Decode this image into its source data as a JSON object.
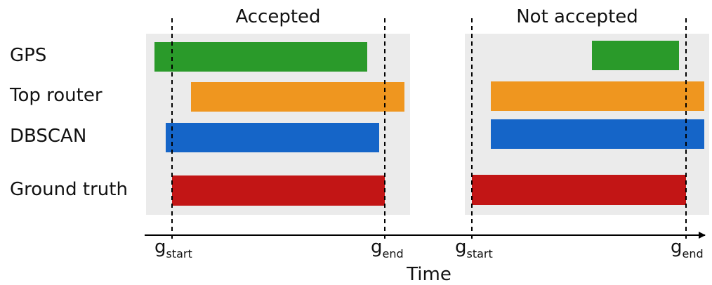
{
  "rows": [
    {
      "id": "gps",
      "label": "GPS",
      "color": "#2a9a2a"
    },
    {
      "id": "top-router",
      "label": "Top router",
      "color": "#ef961f"
    },
    {
      "id": "dbscan",
      "label": "DBSCAN",
      "color": "#1565c8"
    },
    {
      "id": "ground-truth",
      "label": "Ground truth",
      "color": "#c21515"
    }
  ],
  "panels": [
    {
      "id": "accepted",
      "title": "Accepted"
    },
    {
      "id": "not-accepted",
      "title": "Not accepted"
    }
  ],
  "axis": {
    "title": "Time"
  },
  "gap_markers": [
    {
      "id": "g-start-1",
      "base": "g",
      "sub": "start"
    },
    {
      "id": "g-end-1",
      "base": "g",
      "sub": "end"
    },
    {
      "id": "g-start-2",
      "base": "g",
      "sub": "start"
    },
    {
      "id": "g-end-2",
      "base": "g",
      "sub": "end"
    }
  ],
  "colors": {
    "panel_background": "#ebebeb",
    "axis": "#000000"
  }
}
